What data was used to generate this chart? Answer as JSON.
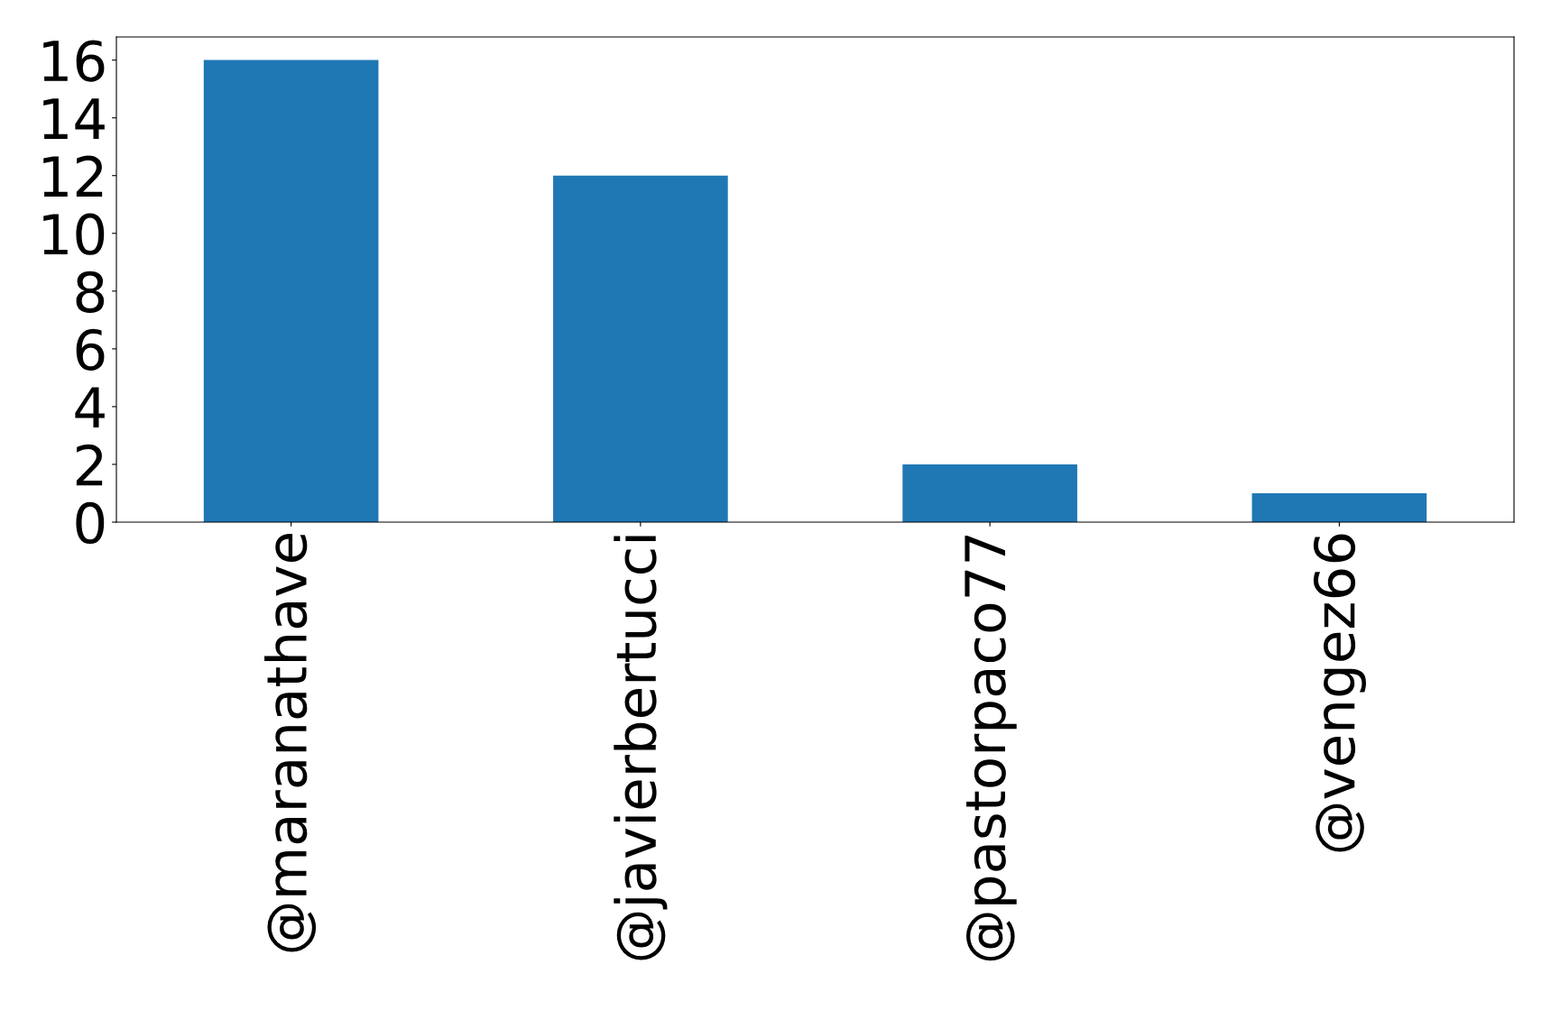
{
  "chart_data": {
    "type": "bar",
    "categories": [
      "@maranathave",
      "@javierbertucci",
      "@pastorpaco77",
      "@vengez66"
    ],
    "values": [
      16,
      12,
      2,
      1
    ],
    "color": "#1f77b4",
    "ylim": [
      0,
      16.8
    ],
    "yticks": [
      0,
      2,
      4,
      6,
      8,
      10,
      12,
      14,
      16
    ],
    "grid": false
  }
}
